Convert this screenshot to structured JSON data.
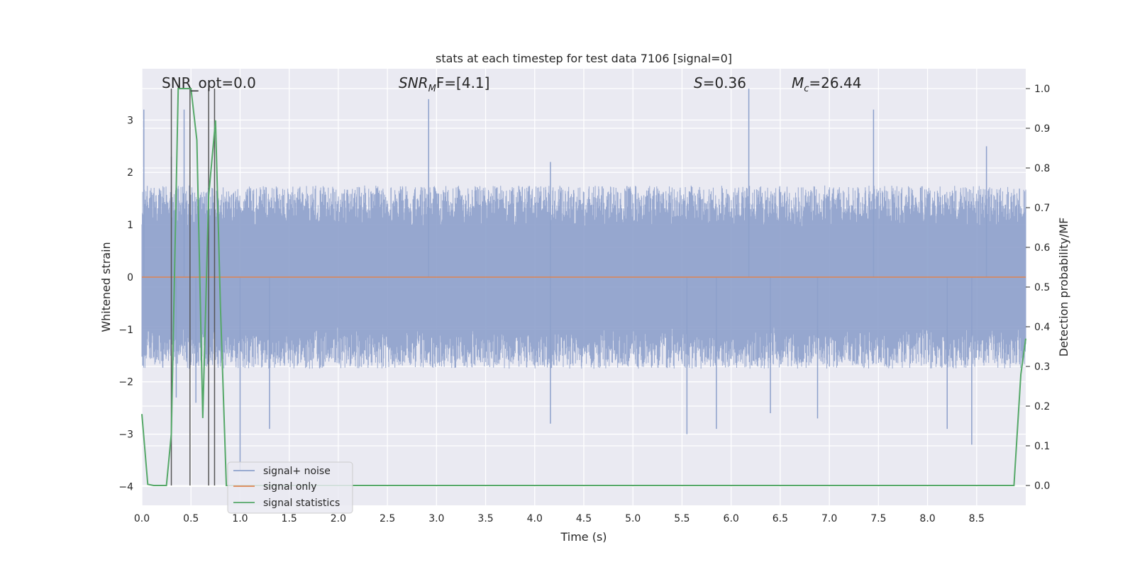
{
  "chart_data": {
    "type": "line",
    "title": "stats at each timestep for test data 7106 [signal=0]",
    "xlabel": "Time (s)",
    "ylabel": "Whitened strain",
    "y2label": "Detection probability/MF",
    "xlim": [
      0.0,
      9.0
    ],
    "ylim": [
      -4.36,
      3.98
    ],
    "y2lim": [
      -0.05,
      1.05
    ],
    "x_ticks": [
      "0.0",
      "0.5",
      "1.0",
      "1.5",
      "2.0",
      "2.5",
      "3.0",
      "3.5",
      "4.0",
      "4.5",
      "5.0",
      "5.5",
      "6.0",
      "6.5",
      "7.0",
      "7.5",
      "8.0",
      "8.5"
    ],
    "y_ticks": [
      "3",
      "2",
      "1",
      "0",
      "−1",
      "−2",
      "−3",
      "−4"
    ],
    "y2_ticks": [
      "1.0",
      "0.9",
      "0.8",
      "0.7",
      "0.6",
      "0.5",
      "0.4",
      "0.3",
      "0.2",
      "0.1",
      "0.0"
    ],
    "grid": true,
    "legend_position": "lower-left",
    "annotations": {
      "snr_opt": "SNR_opt=0.0",
      "snr_mf": "F=[4.1]",
      "s": "=0.36",
      "mc": "=26.44"
    },
    "series": [
      {
        "name": "signal+ noise",
        "color": "#8da0cb",
        "noise_envelope": {
          "typical_abs_max": 1.75,
          "peak_max": 3.6,
          "peak_min": -3.6
        },
        "peaks": [
          [
            0.02,
            3.2
          ],
          [
            0.3,
            2.3
          ],
          [
            0.35,
            -2.3
          ],
          [
            0.43,
            3.2
          ],
          [
            0.55,
            -2.4
          ],
          [
            1.0,
            -3.7
          ],
          [
            1.3,
            -2.9
          ],
          [
            2.92,
            3.4
          ],
          [
            4.16,
            -2.8
          ],
          [
            4.16,
            2.2
          ],
          [
            5.55,
            -3.0
          ],
          [
            5.85,
            -2.9
          ],
          [
            6.18,
            3.6
          ],
          [
            6.4,
            -2.6
          ],
          [
            6.88,
            -2.7
          ],
          [
            7.45,
            3.2
          ],
          [
            8.2,
            -2.9
          ],
          [
            8.45,
            -3.2
          ],
          [
            8.6,
            2.5
          ]
        ]
      },
      {
        "name": "signal only",
        "color": "#dd8452",
        "x": [
          0.0,
          9.0
        ],
        "y": [
          0.0,
          0.0
        ]
      },
      {
        "name": "signal statistics",
        "color": "#55a868",
        "x": [
          0.0,
          0.06,
          0.12,
          0.25,
          0.3,
          0.37,
          0.45,
          0.5,
          0.56,
          0.62,
          0.68,
          0.75,
          0.8,
          0.86,
          0.92,
          1.0,
          1.5,
          2.0,
          4.0,
          6.0,
          8.0,
          8.5,
          8.88,
          8.95,
          9.0
        ],
        "y": [
          0.18,
          0.003,
          0.0,
          0.0,
          0.13,
          1.0,
          1.0,
          1.0,
          0.87,
          0.17,
          0.73,
          0.92,
          0.45,
          0.0,
          0.0,
          0.0,
          0.0,
          0.0,
          0.0,
          0.0,
          0.0,
          0.0,
          0.0,
          0.28,
          0.37
        ]
      }
    ],
    "vertical_markers": [
      0.3,
      0.49,
      0.68,
      0.74
    ]
  }
}
